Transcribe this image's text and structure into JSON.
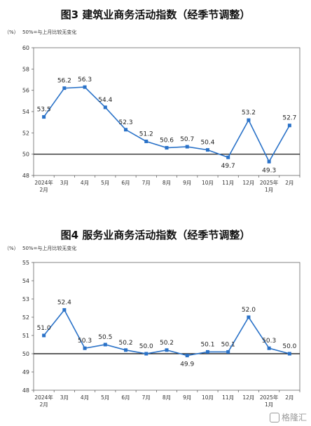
{
  "charts": [
    {
      "title": "图3  建筑业商务活动指数（经季节调整）",
      "unit": "（%）",
      "note": "50%=与上月比较无变化"
    },
    {
      "title": "图4  服务业商务活动指数（经季节调整）",
      "unit": "（%）",
      "note": "50%=与上月比较无变化"
    }
  ],
  "watermark": "格隆汇",
  "chart_data": [
    {
      "type": "line",
      "title": "图3  建筑业商务活动指数（经季节调整）",
      "categories": [
        [
          "2024年",
          "2月"
        ],
        [
          "3月"
        ],
        [
          "4月"
        ],
        [
          "5月"
        ],
        [
          "6月"
        ],
        [
          "7月"
        ],
        [
          "8月"
        ],
        [
          "9月"
        ],
        [
          "10月"
        ],
        [
          "11月"
        ],
        [
          "12月"
        ],
        [
          "2025年",
          "1月"
        ],
        [
          "2月"
        ]
      ],
      "values": [
        53.5,
        56.2,
        56.3,
        54.4,
        52.3,
        51.2,
        50.6,
        50.7,
        50.4,
        49.7,
        53.2,
        49.3,
        52.7
      ],
      "labels": [
        "53.5",
        "56.2",
        "56.3",
        "54.4",
        "52.3",
        "51.2",
        "50.6",
        "50.7",
        "50.4",
        "49.7",
        "53.2",
        "49.3",
        "52.7"
      ],
      "ylim": [
        48,
        60
      ],
      "yticks": [
        48,
        50,
        52,
        54,
        56,
        58,
        60
      ],
      "baseline": 50,
      "color": "#2a72c8",
      "grid": false
    },
    {
      "type": "line",
      "title": "图4  服务业商务活动指数（经季节调整）",
      "categories": [
        [
          "2024年",
          "2月"
        ],
        [
          "3月"
        ],
        [
          "4月"
        ],
        [
          "5月"
        ],
        [
          "6月"
        ],
        [
          "7月"
        ],
        [
          "8月"
        ],
        [
          "9月"
        ],
        [
          "10月"
        ],
        [
          "11月"
        ],
        [
          "12月"
        ],
        [
          "2025年",
          "1月"
        ],
        [
          "2月"
        ]
      ],
      "values": [
        51.0,
        52.4,
        50.3,
        50.5,
        50.2,
        50.0,
        50.2,
        49.9,
        50.1,
        50.1,
        52.0,
        50.3,
        50.0
      ],
      "labels": [
        "51.0",
        "52.4",
        "50.3",
        "50.5",
        "50.2",
        "50.0",
        "50.2",
        "49.9",
        "50.1",
        "50.1",
        "52.0",
        "50.3",
        "50.0"
      ],
      "ylim": [
        48,
        55
      ],
      "yticks": [
        48,
        49,
        50,
        51,
        52,
        53,
        54,
        55
      ],
      "baseline": 50,
      "color": "#2a72c8",
      "grid": false
    }
  ]
}
